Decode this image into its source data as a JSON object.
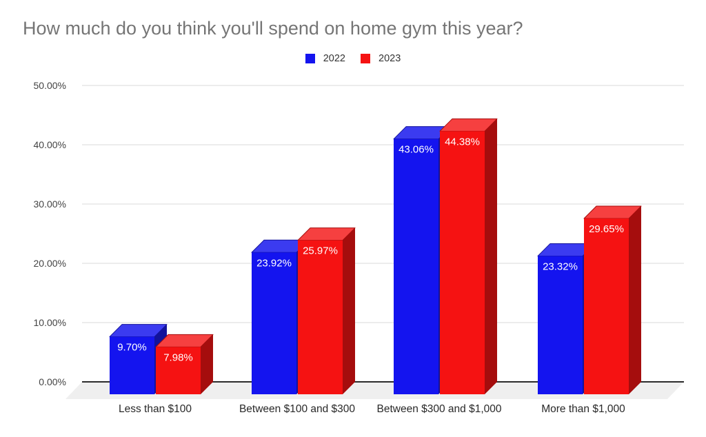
{
  "chart_data": {
    "type": "bar",
    "variant": "3d-column-grouped",
    "title": "How much do you think you'll spend on home gym this year?",
    "title_color": "#757575",
    "categories": [
      "Less than $100",
      "Between $100 and $300",
      "Between $300 and $1,000",
      "More than $1,000"
    ],
    "series": [
      {
        "name": "2022",
        "values": [
          9.7,
          23.92,
          43.06,
          23.32
        ],
        "labels": [
          "9.70%",
          "23.92%",
          "43.06%",
          "23.32%"
        ],
        "colors": {
          "front": "#1414ef",
          "top": "#3b3bf0",
          "side": "#12129b"
        }
      },
      {
        "name": "2023",
        "values": [
          7.98,
          25.97,
          44.38,
          29.65
        ],
        "labels": [
          "7.98%",
          "25.97%",
          "44.38%",
          "29.65%"
        ],
        "colors": {
          "front": "#f51212",
          "top": "#f64040",
          "side": "#a50d0d"
        }
      }
    ],
    "xlabel": "",
    "ylabel": "",
    "y_axis": {
      "min": 0,
      "max": 50,
      "tick_step": 10,
      "ticks": [
        "0.00%",
        "10.00%",
        "20.00%",
        "30.00%",
        "40.00%",
        "50.00%"
      ]
    },
    "grid": true,
    "legend_position": "top",
    "gridline_color": "#d9d9d9",
    "baseline_color": "#2b2b2b",
    "floor_color": "#efefef",
    "value_label_color": "#ffffff",
    "axis_text_color": "#434343",
    "category_text_color": "#282828"
  }
}
